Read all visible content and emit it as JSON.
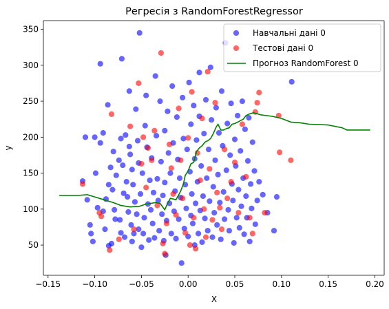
{
  "chart_data": {
    "type": "scatter",
    "title": "Регресія з RandomForestRegressor",
    "xlabel": "X",
    "ylabel": "y",
    "xlim": [
      -0.155,
      0.21
    ],
    "ylim": [
      8,
      362
    ],
    "xticks": [
      -0.15,
      -0.1,
      -0.05,
      0.0,
      0.05,
      0.1,
      0.15,
      0.2
    ],
    "xtick_labels": [
      "−0.15",
      "−0.10",
      "−0.05",
      "0.00",
      "0.05",
      "0.10",
      "0.15",
      "0.20"
    ],
    "yticks": [
      50,
      100,
      150,
      200,
      250,
      300,
      350
    ],
    "ytick_labels": [
      "50",
      "100",
      "150",
      "200",
      "250",
      "300",
      "350"
    ],
    "grid": false,
    "legend_position": "upper right",
    "series": [
      {
        "name": "Навчальні дані 0",
        "kind": "scatter",
        "color": "#0000ff",
        "alpha": 0.6,
        "points": [
          [
            -0.113,
            139
          ],
          [
            -0.11,
            200
          ],
          [
            -0.108,
            113
          ],
          [
            -0.105,
            78
          ],
          [
            -0.104,
            66
          ],
          [
            -0.102,
            55
          ],
          [
            -0.1,
            200
          ],
          [
            -0.099,
            150
          ],
          [
            -0.097,
            102
          ],
          [
            -0.094,
            302
          ],
          [
            -0.094,
            192
          ],
          [
            -0.091,
            206
          ],
          [
            -0.091,
            97
          ],
          [
            -0.089,
            72
          ],
          [
            -0.088,
            114
          ],
          [
            -0.086,
            245
          ],
          [
            -0.085,
            49
          ],
          [
            -0.085,
            134
          ],
          [
            -0.083,
            158
          ],
          [
            -0.082,
            52
          ],
          [
            -0.081,
            127
          ],
          [
            -0.08,
            180
          ],
          [
            -0.079,
            99
          ],
          [
            -0.078,
            86
          ],
          [
            -0.077,
            147
          ],
          [
            -0.074,
            168
          ],
          [
            -0.073,
            85
          ],
          [
            -0.072,
            198
          ],
          [
            -0.072,
            67
          ],
          [
            -0.071,
            309
          ],
          [
            -0.07,
            161
          ],
          [
            -0.069,
            122
          ],
          [
            -0.068,
            61
          ],
          [
            -0.067,
            203
          ],
          [
            -0.066,
            138
          ],
          [
            -0.065,
            117
          ],
          [
            -0.064,
            96
          ],
          [
            -0.063,
            264
          ],
          [
            -0.063,
            187
          ],
          [
            -0.062,
            176
          ],
          [
            -0.061,
            78
          ],
          [
            -0.06,
            55
          ],
          [
            -0.06,
            155
          ],
          [
            -0.059,
            134
          ],
          [
            -0.058,
            66
          ],
          [
            -0.057,
            110
          ],
          [
            -0.056,
            239
          ],
          [
            -0.055,
            93
          ],
          [
            -0.054,
            195
          ],
          [
            -0.053,
            164
          ],
          [
            -0.053,
            72
          ],
          [
            -0.052,
            345
          ],
          [
            -0.051,
            121
          ],
          [
            -0.05,
            47
          ],
          [
            -0.049,
            150
          ],
          [
            -0.048,
            66
          ],
          [
            -0.047,
            88
          ],
          [
            -0.046,
            216
          ],
          [
            -0.045,
            258
          ],
          [
            -0.044,
            186
          ],
          [
            -0.043,
            107
          ],
          [
            -0.042,
            57
          ],
          [
            -0.041,
            140
          ],
          [
            -0.04,
            99
          ],
          [
            -0.039,
            171
          ],
          [
            -0.038,
            80
          ],
          [
            -0.037,
            123
          ],
          [
            -0.036,
            60
          ],
          [
            -0.035,
            285
          ],
          [
            -0.034,
            202
          ],
          [
            -0.033,
            142
          ],
          [
            -0.032,
            112
          ],
          [
            -0.031,
            70
          ],
          [
            -0.03,
            250
          ],
          [
            -0.029,
            166
          ],
          [
            -0.028,
            93
          ],
          [
            -0.027,
            119
          ],
          [
            -0.026,
            56
          ],
          [
            -0.025,
            209
          ],
          [
            -0.025,
            137
          ],
          [
            -0.024,
            36
          ],
          [
            -0.023,
            84
          ],
          [
            -0.022,
            236
          ],
          [
            -0.021,
            178
          ],
          [
            -0.02,
            108
          ],
          [
            -0.019,
            150
          ],
          [
            -0.018,
            66
          ],
          [
            -0.017,
            271
          ],
          [
            -0.016,
            192
          ],
          [
            -0.015,
            97
          ],
          [
            -0.014,
            125
          ],
          [
            -0.013,
            59
          ],
          [
            -0.012,
            228
          ],
          [
            -0.011,
            169
          ],
          [
            -0.01,
            86
          ],
          [
            -0.009,
            143
          ],
          [
            -0.008,
            116
          ],
          [
            -0.007,
            25
          ],
          [
            -0.006,
            255
          ],
          [
            -0.005,
            198
          ],
          [
            -0.004,
            73
          ],
          [
            -0.003,
            134
          ],
          [
            -0.002,
            101
          ],
          [
            -0.001,
            183
          ],
          [
            0.0,
            62
          ],
          [
            0.001,
            276
          ],
          [
            0.002,
            152
          ],
          [
            0.003,
            91
          ],
          [
            0.003,
            218
          ],
          [
            0.004,
            121
          ],
          [
            0.005,
            80
          ],
          [
            0.006,
            244
          ],
          [
            0.007,
            170
          ],
          [
            0.007,
            50
          ],
          [
            0.008,
            108
          ],
          [
            0.009,
            196
          ],
          [
            0.01,
            138
          ],
          [
            0.011,
            66
          ],
          [
            0.012,
            290
          ],
          [
            0.012,
            229
          ],
          [
            0.013,
            98
          ],
          [
            0.014,
            160
          ],
          [
            0.015,
            54
          ],
          [
            0.016,
            118
          ],
          [
            0.017,
            205
          ],
          [
            0.018,
            87
          ],
          [
            0.019,
            252
          ],
          [
            0.02,
            143
          ],
          [
            0.021,
            70
          ],
          [
            0.022,
            183
          ],
          [
            0.023,
            111
          ],
          [
            0.024,
            297
          ],
          [
            0.025,
            224
          ],
          [
            0.026,
            61
          ],
          [
            0.027,
            131
          ],
          [
            0.028,
            95
          ],
          [
            0.029,
            168
          ],
          [
            0.03,
            241
          ],
          [
            0.031,
            78
          ],
          [
            0.032,
            148
          ],
          [
            0.033,
            206
          ],
          [
            0.034,
            109
          ],
          [
            0.035,
            58
          ],
          [
            0.036,
            264
          ],
          [
            0.037,
            188
          ],
          [
            0.038,
            124
          ],
          [
            0.039,
            86
          ],
          [
            0.04,
            331
          ],
          [
            0.041,
            154
          ],
          [
            0.042,
            219
          ],
          [
            0.043,
            99
          ],
          [
            0.044,
            70
          ],
          [
            0.045,
            175
          ],
          [
            0.046,
            247
          ],
          [
            0.047,
            135
          ],
          [
            0.048,
            112
          ],
          [
            0.049,
            53
          ],
          [
            0.05,
            197
          ],
          [
            0.051,
            160
          ],
          [
            0.052,
            88
          ],
          [
            0.053,
            230
          ],
          [
            0.054,
            127
          ],
          [
            0.055,
            74
          ],
          [
            0.056,
            181
          ],
          [
            0.057,
            104
          ],
          [
            0.058,
            250
          ],
          [
            0.059,
            143
          ],
          [
            0.06,
            65
          ],
          [
            0.061,
            211
          ],
          [
            0.062,
            118
          ],
          [
            0.063,
            88
          ],
          [
            0.064,
            167
          ],
          [
            0.065,
            227
          ],
          [
            0.066,
            55
          ],
          [
            0.067,
            135
          ],
          [
            0.068,
            101
          ],
          [
            0.069,
            193
          ],
          [
            0.071,
            153
          ],
          [
            0.072,
            79
          ],
          [
            0.074,
            112
          ],
          [
            0.076,
            138
          ],
          [
            0.08,
            120
          ],
          [
            0.085,
            95
          ],
          [
            0.092,
            70
          ],
          [
            0.095,
            117
          ],
          [
            0.111,
            277
          ]
        ]
      },
      {
        "name": "Тестові дані 0",
        "kind": "scatter",
        "color": "#ff0000",
        "alpha": 0.6,
        "points": [
          [
            -0.113,
            135
          ],
          [
            -0.095,
            95
          ],
          [
            -0.093,
            90
          ],
          [
            -0.084,
            43
          ],
          [
            -0.082,
            232
          ],
          [
            -0.074,
            58
          ],
          [
            -0.062,
            215
          ],
          [
            -0.058,
            72
          ],
          [
            -0.053,
            275
          ],
          [
            -0.05,
            163
          ],
          [
            -0.048,
            200
          ],
          [
            -0.045,
            130
          ],
          [
            -0.043,
            185
          ],
          [
            -0.039,
            168
          ],
          [
            -0.036,
            209
          ],
          [
            -0.033,
            105
          ],
          [
            -0.029,
            317
          ],
          [
            -0.027,
            52
          ],
          [
            -0.025,
            38
          ],
          [
            -0.023,
            80
          ],
          [
            -0.02,
            190
          ],
          [
            -0.018,
            157
          ],
          [
            -0.016,
            121
          ],
          [
            -0.013,
            92
          ],
          [
            -0.01,
            240
          ],
          [
            -0.008,
            168
          ],
          [
            -0.006,
            115
          ],
          [
            -0.003,
            67
          ],
          [
            0.0,
            199
          ],
          [
            0.002,
            50
          ],
          [
            0.004,
            263
          ],
          [
            0.006,
            88
          ],
          [
            0.008,
            45
          ],
          [
            0.01,
            178
          ],
          [
            0.013,
            140
          ],
          [
            0.015,
            226
          ],
          [
            0.017,
            100
          ],
          [
            0.019,
            61
          ],
          [
            0.021,
            291
          ],
          [
            0.023,
            156
          ],
          [
            0.026,
            85
          ],
          [
            0.029,
            248
          ],
          [
            0.031,
            123
          ],
          [
            0.034,
            102
          ],
          [
            0.036,
            72
          ],
          [
            0.039,
            183
          ],
          [
            0.042,
            115
          ],
          [
            0.046,
            138
          ],
          [
            0.05,
            165
          ],
          [
            0.054,
            95
          ],
          [
            0.058,
            218
          ],
          [
            0.062,
            145
          ],
          [
            0.066,
            88
          ],
          [
            0.069,
            66
          ],
          [
            0.072,
            235
          ],
          [
            0.074,
            248
          ],
          [
            0.076,
            262
          ],
          [
            0.082,
            95
          ],
          [
            0.097,
            230
          ],
          [
            0.098,
            179
          ],
          [
            0.11,
            168
          ]
        ]
      },
      {
        "name": "Прогноз RandomForest 0",
        "kind": "line",
        "color": "#008000",
        "points": [
          [
            -0.138,
            119
          ],
          [
            -0.118,
            119
          ],
          [
            -0.108,
            120
          ],
          [
            -0.1,
            117
          ],
          [
            -0.09,
            113
          ],
          [
            -0.08,
            109
          ],
          [
            -0.072,
            105
          ],
          [
            -0.062,
            103
          ],
          [
            -0.052,
            104
          ],
          [
            -0.045,
            107
          ],
          [
            -0.04,
            108
          ],
          [
            -0.035,
            109
          ],
          [
            -0.03,
            108
          ],
          [
            -0.025,
            99
          ],
          [
            -0.022,
            108
          ],
          [
            -0.019,
            115
          ],
          [
            -0.016,
            114
          ],
          [
            -0.013,
            113
          ],
          [
            -0.01,
            120
          ],
          [
            -0.008,
            125
          ],
          [
            -0.005,
            135
          ],
          [
            -0.003,
            147
          ],
          [
            0.0,
            153
          ],
          [
            0.003,
            163
          ],
          [
            0.006,
            165
          ],
          [
            0.009,
            180
          ],
          [
            0.012,
            185
          ],
          [
            0.015,
            188
          ],
          [
            0.018,
            193
          ],
          [
            0.021,
            195
          ],
          [
            0.024,
            198
          ],
          [
            0.027,
            205
          ],
          [
            0.03,
            214
          ],
          [
            0.032,
            218
          ],
          [
            0.035,
            210
          ],
          [
            0.038,
            210
          ],
          [
            0.041,
            212
          ],
          [
            0.044,
            213
          ],
          [
            0.047,
            218
          ],
          [
            0.05,
            219
          ],
          [
            0.053,
            221
          ],
          [
            0.056,
            223
          ],
          [
            0.059,
            225
          ],
          [
            0.062,
            230
          ],
          [
            0.065,
            232
          ],
          [
            0.07,
            234
          ],
          [
            0.078,
            231
          ],
          [
            0.09,
            229
          ],
          [
            0.1,
            226
          ],
          [
            0.11,
            221
          ],
          [
            0.12,
            220
          ],
          [
            0.13,
            218
          ],
          [
            0.15,
            217
          ],
          [
            0.165,
            213
          ],
          [
            0.17,
            210
          ],
          [
            0.195,
            210
          ]
        ]
      }
    ]
  }
}
